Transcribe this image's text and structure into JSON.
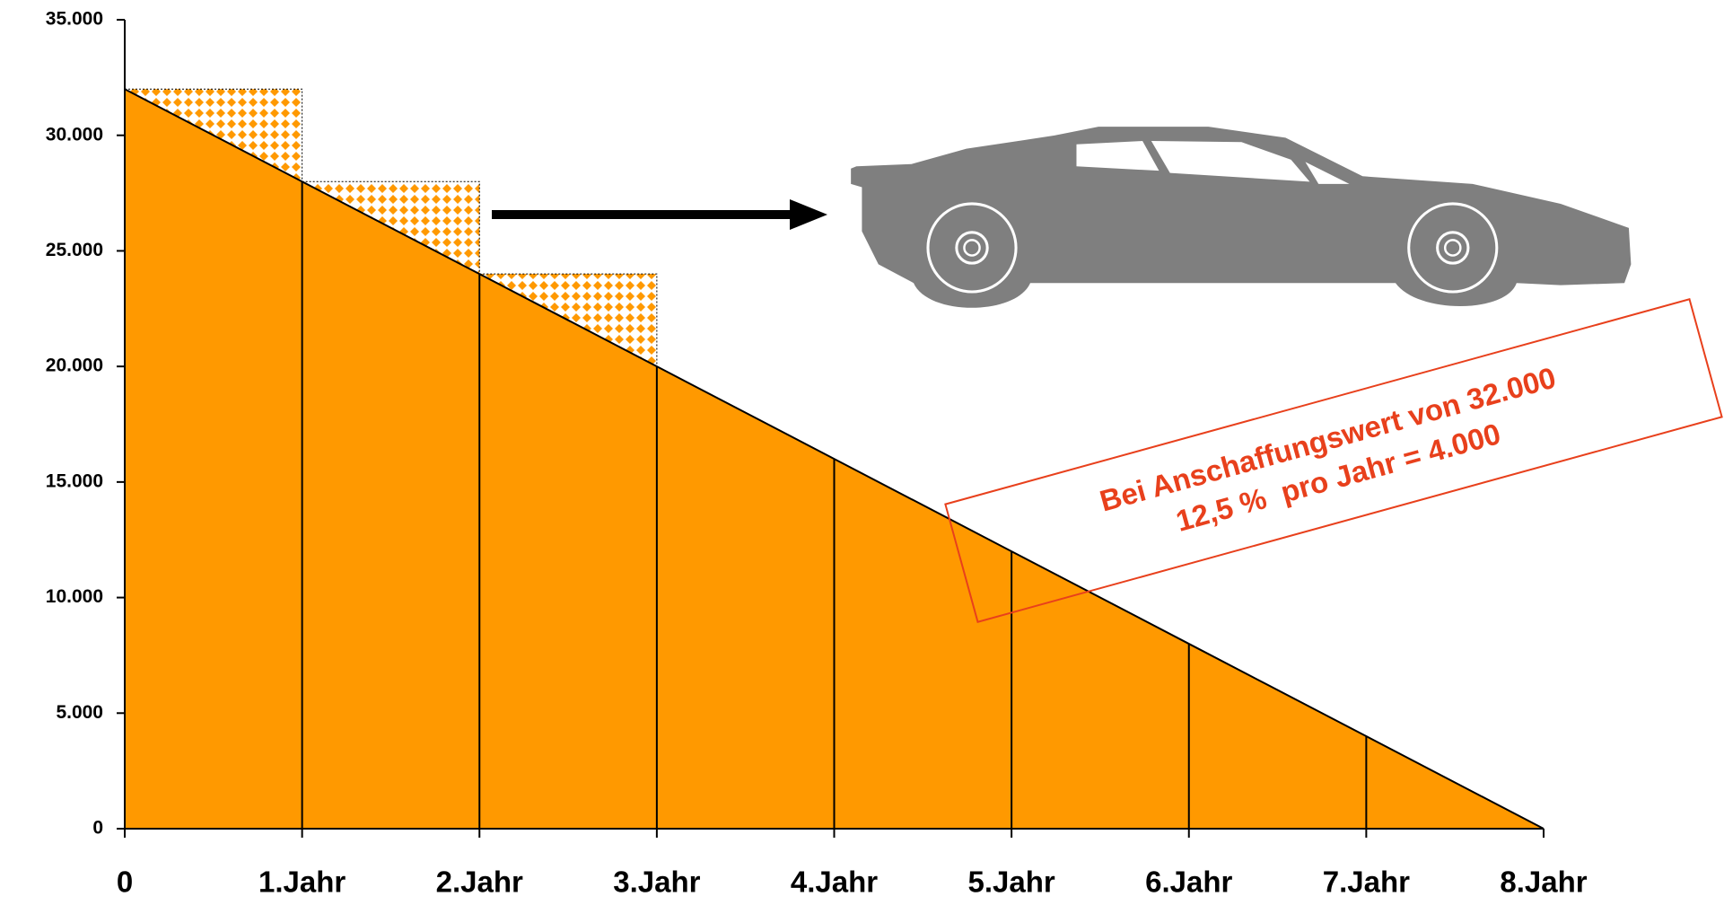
{
  "chart_data": {
    "type": "area",
    "categories": [
      "0",
      "1.Jahr",
      "2.Jahr",
      "3.Jahr",
      "4.Jahr",
      "5.Jahr",
      "6.Jahr",
      "7.Jahr",
      "8.Jahr"
    ],
    "values": [
      32000,
      28000,
      24000,
      20000,
      16000,
      12000,
      8000,
      4000,
      0
    ],
    "color": "#ff9900",
    "ylim": [
      0,
      35000
    ],
    "yticks": [
      0,
      {
        "value": 5000,
        "label": "5.000"
      },
      {
        "value": 10000,
        "label": "10.000"
      },
      {
        "value": 15000,
        "label": "15.000"
      },
      {
        "value": 20000,
        "label": "20.000"
      },
      {
        "value": 25000,
        "label": "25.000"
      },
      {
        "value": 30000,
        "label": "30.000"
      },
      {
        "value": 35000,
        "label": "35.000"
      }
    ],
    "annotations": [
      "Bei Anschaffungswert von 32.000",
      "12,5 %  pro Jahr = 4.000"
    ]
  }
}
